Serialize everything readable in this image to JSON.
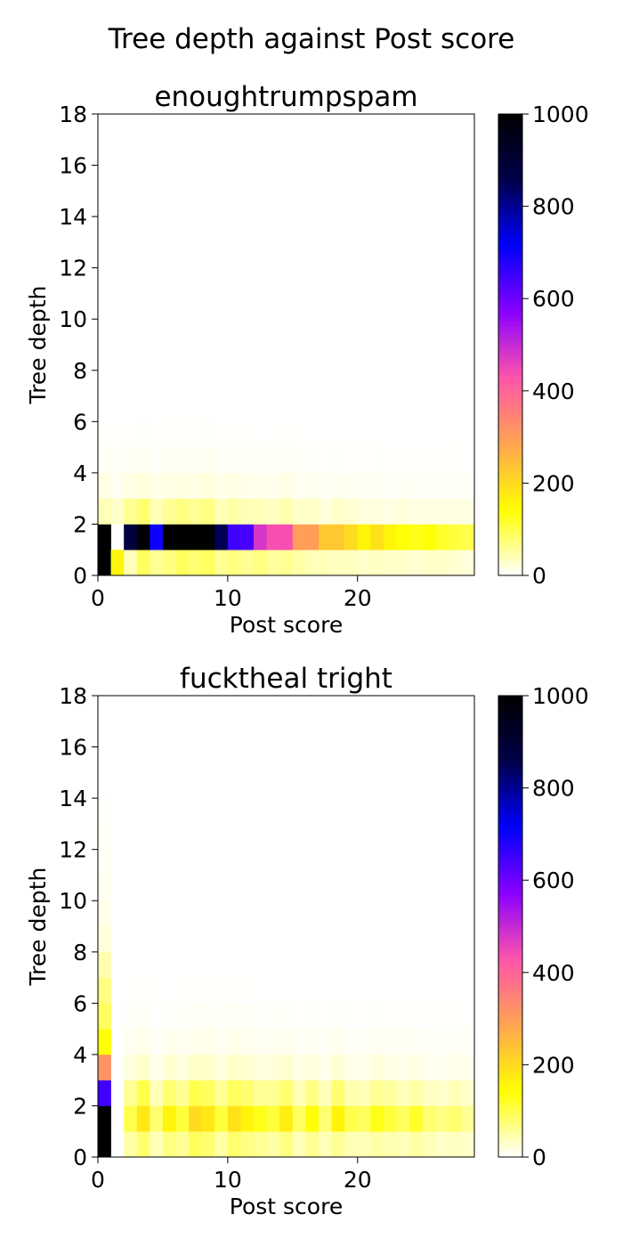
{
  "figure": {
    "suptitle": "Tree depth against Post score"
  },
  "colormap": {
    "name": "gnuplot2_r",
    "stops": [
      "#ffffff",
      "#ffff00",
      "#ffa550",
      "#ff55aa",
      "#8a00ff",
      "#0000ff",
      "#00004a",
      "#000000"
    ]
  },
  "chart_data": [
    {
      "type": "heatmap",
      "title": "enoughtrumpspam",
      "xlabel": "Post score",
      "ylabel": "Tree depth",
      "xlim": [
        0,
        29
      ],
      "ylim": [
        0,
        18
      ],
      "xticks": [
        0,
        10,
        20
      ],
      "yticks": [
        0,
        2,
        4,
        6,
        8,
        10,
        12,
        14,
        16,
        18
      ],
      "colorbar": {
        "range": [
          0,
          1000
        ],
        "ticks": [
          0,
          200,
          400,
          600,
          800,
          1000
        ]
      },
      "bins": {
        "x": [
          0,
          1,
          2,
          3,
          4,
          5,
          6,
          7,
          8,
          9,
          10,
          11,
          12,
          13,
          14,
          15,
          16,
          17,
          18,
          19,
          20,
          21,
          22,
          23,
          24,
          25,
          26,
          27,
          28
        ],
        "y": [
          0,
          1,
          2,
          3,
          4,
          5,
          6,
          7
        ]
      },
      "counts_by_depth": [
        [
          1000,
          160,
          40,
          90,
          60,
          70,
          90,
          80,
          90,
          60,
          70,
          60,
          70,
          55,
          60,
          50,
          40,
          40,
          35,
          35,
          30,
          35,
          30,
          30,
          25,
          30,
          30,
          25,
          20
        ],
        [
          1000,
          0,
          880,
          1000,
          700,
          1000,
          1000,
          1000,
          1000,
          850,
          650,
          640,
          480,
          440,
          440,
          300,
          300,
          230,
          230,
          200,
          160,
          190,
          160,
          140,
          130,
          140,
          120,
          110,
          100
        ],
        [
          40,
          30,
          60,
          80,
          40,
          60,
          70,
          60,
          70,
          40,
          50,
          40,
          40,
          35,
          45,
          30,
          30,
          20,
          30,
          25,
          20,
          20,
          15,
          20,
          15,
          15,
          15,
          15,
          15
        ],
        [
          15,
          8,
          15,
          20,
          12,
          15,
          15,
          15,
          20,
          12,
          15,
          12,
          12,
          10,
          15,
          8,
          10,
          6,
          10,
          8,
          6,
          6,
          5,
          6,
          5,
          5,
          5,
          5,
          5
        ],
        [
          6,
          3,
          6,
          8,
          4,
          6,
          6,
          5,
          8,
          4,
          5,
          4,
          4,
          3,
          5,
          3,
          3,
          2,
          3,
          2,
          2,
          2,
          2,
          2,
          2,
          2,
          2,
          2,
          2
        ],
        [
          2,
          1,
          2,
          3,
          1,
          2,
          2,
          2,
          3,
          1,
          2,
          1,
          1,
          1,
          2,
          1,
          1,
          1,
          1,
          1,
          1,
          1,
          0,
          1,
          0,
          1,
          0,
          1,
          1
        ],
        [
          0,
          0,
          0,
          0,
          0,
          1,
          1,
          1,
          0,
          1,
          0,
          0,
          0,
          0,
          0,
          1,
          0,
          0,
          0,
          0,
          0,
          0,
          0,
          0,
          0,
          0,
          0,
          0,
          0
        ]
      ]
    },
    {
      "type": "heatmap",
      "title": "fucktheal tright",
      "xlabel": "Post score",
      "ylabel": "Tree depth",
      "xlim": [
        0,
        29
      ],
      "ylim": [
        0,
        18
      ],
      "xticks": [
        0,
        10,
        20
      ],
      "yticks": [
        0,
        2,
        4,
        6,
        8,
        10,
        12,
        14,
        16,
        18
      ],
      "colorbar": {
        "range": [
          0,
          1000
        ],
        "ticks": [
          0,
          200,
          400,
          600,
          800,
          1000
        ]
      },
      "bins": {
        "x": [
          0,
          1,
          2,
          3,
          4,
          5,
          6,
          7,
          8,
          9,
          10,
          11,
          12,
          13,
          14,
          15,
          16,
          17,
          18,
          19,
          20,
          21,
          22,
          23,
          24,
          25,
          26,
          27,
          28
        ],
        "y": [
          0,
          1,
          2,
          3,
          4,
          5,
          6,
          7,
          8,
          9,
          10,
          11,
          12,
          13
        ]
      },
      "counts_by_depth": [
        [
          1000,
          0,
          50,
          80,
          40,
          70,
          60,
          90,
          80,
          50,
          80,
          70,
          60,
          50,
          70,
          40,
          60,
          40,
          60,
          40,
          40,
          50,
          45,
          40,
          50,
          40,
          30,
          35,
          30
        ],
        [
          1000,
          0,
          100,
          180,
          80,
          160,
          110,
          200,
          180,
          110,
          190,
          160,
          130,
          110,
          170,
          90,
          140,
          80,
          160,
          100,
          90,
          130,
          110,
          90,
          120,
          80,
          70,
          80,
          60
        ],
        [
          650,
          0,
          60,
          100,
          40,
          80,
          60,
          100,
          90,
          60,
          90,
          80,
          60,
          60,
          80,
          40,
          70,
          40,
          80,
          45,
          40,
          60,
          55,
          40,
          50,
          35,
          30,
          40,
          30
        ],
        [
          320,
          0,
          20,
          30,
          12,
          25,
          20,
          30,
          30,
          20,
          30,
          25,
          20,
          20,
          25,
          15,
          20,
          12,
          25,
          12,
          12,
          20,
          15,
          12,
          15,
          10,
          10,
          12,
          10
        ],
        [
          140,
          0,
          8,
          12,
          4,
          10,
          8,
          12,
          12,
          8,
          12,
          10,
          8,
          8,
          10,
          6,
          8,
          5,
          10,
          5,
          5,
          8,
          6,
          5,
          6,
          4,
          4,
          5,
          4
        ],
        [
          90,
          0,
          3,
          5,
          1,
          3,
          3,
          5,
          5,
          3,
          5,
          4,
          3,
          3,
          4,
          2,
          3,
          2,
          4,
          2,
          2,
          3,
          2,
          2,
          2,
          2,
          2,
          2,
          2
        ],
        [
          70,
          0,
          1,
          2,
          1,
          1,
          1,
          2,
          2,
          1,
          2,
          1,
          1,
          1,
          1,
          1,
          1,
          1,
          1,
          1,
          1,
          1,
          1,
          1,
          1,
          1,
          1,
          1,
          1
        ],
        [
          45,
          0,
          1,
          1,
          0,
          1,
          1,
          1,
          1,
          1,
          1,
          1,
          1,
          1,
          1,
          1,
          1,
          0,
          1,
          0,
          1,
          1,
          1,
          1,
          1,
          1,
          1,
          1,
          1
        ],
        [
          20,
          0,
          0,
          1,
          0,
          0,
          0,
          0,
          0,
          0,
          0,
          0,
          0,
          0,
          0,
          0,
          0,
          0,
          0,
          0,
          0,
          1,
          0,
          0,
          0,
          0,
          1,
          0,
          1
        ],
        [
          12,
          0,
          0,
          0,
          0,
          0,
          0,
          0,
          0,
          0,
          0,
          0,
          0,
          0,
          0,
          0,
          0,
          0,
          0,
          0,
          0,
          0,
          0,
          0,
          0,
          0,
          0,
          0,
          0
        ],
        [
          8,
          0,
          0,
          0,
          0,
          0,
          0,
          0,
          0,
          0,
          0,
          0,
          0,
          0,
          0,
          0,
          0,
          0,
          0,
          0,
          0,
          0,
          0,
          0,
          0,
          0,
          0,
          0,
          0
        ],
        [
          6,
          0,
          0,
          0,
          0,
          0,
          0,
          0,
          0,
          0,
          0,
          0,
          0,
          0,
          0,
          0,
          0,
          0,
          0,
          0,
          0,
          0,
          0,
          0,
          0,
          0,
          0,
          0,
          0
        ],
        [
          4,
          0,
          0,
          0,
          0,
          0,
          0,
          0,
          0,
          0,
          0,
          0,
          0,
          0,
          0,
          0,
          0,
          0,
          0,
          0,
          0,
          0,
          0,
          0,
          0,
          0,
          0,
          0,
          0
        ],
        [
          3,
          0,
          0,
          0,
          0,
          0,
          0,
          0,
          0,
          0,
          0,
          0,
          0,
          0,
          0,
          0,
          0,
          0,
          0,
          0,
          0,
          0,
          0,
          0,
          0,
          0,
          0,
          0,
          0
        ]
      ]
    }
  ]
}
